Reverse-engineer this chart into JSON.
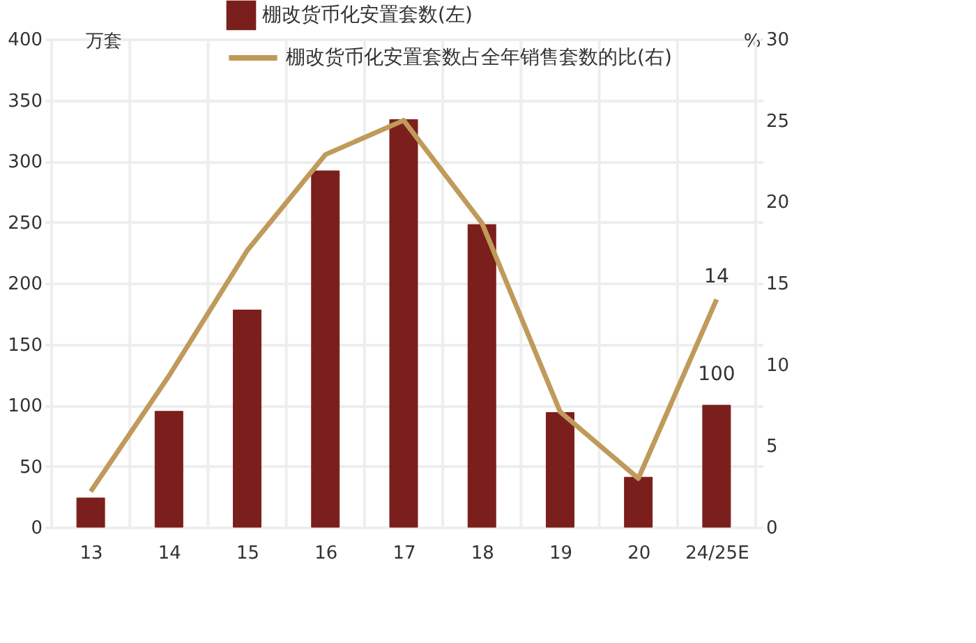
{
  "chart_data": {
    "type": "bar",
    "categories": [
      "13",
      "14",
      "15",
      "16",
      "17",
      "18",
      "19",
      "20",
      "24/25E"
    ],
    "ylabel": "万套",
    "y2label": "%",
    "ylim": [
      0,
      400
    ],
    "yticks": [
      0,
      50,
      100,
      150,
      200,
      250,
      300,
      350,
      400
    ],
    "y2lim": [
      0,
      30
    ],
    "y2ticks": [
      0,
      5,
      10,
      15,
      20,
      25,
      30
    ],
    "series": [
      {
        "name": "棚改货币化安置套数(左)",
        "color": "#7b1f1c",
        "values": [
          24,
          95,
          178,
          292,
          334,
          248,
          94,
          41,
          100
        ],
        "value_labels": [
          null,
          null,
          null,
          null,
          null,
          null,
          null,
          null,
          "100"
        ]
      },
      {
        "name": "棚改货币化安置套数占全年销售套数的比(右)",
        "type": "line",
        "axis": "y2",
        "color": "#c09a5b",
        "values": [
          2.2,
          9.3,
          17.0,
          22.9,
          25.0,
          18.7,
          7.1,
          3.0,
          14
        ],
        "value_labels": [
          null,
          null,
          null,
          null,
          null,
          null,
          null,
          null,
          "14"
        ]
      }
    ],
    "grid": true,
    "legend": "top",
    "marker": "none",
    "line_style": "solid"
  }
}
